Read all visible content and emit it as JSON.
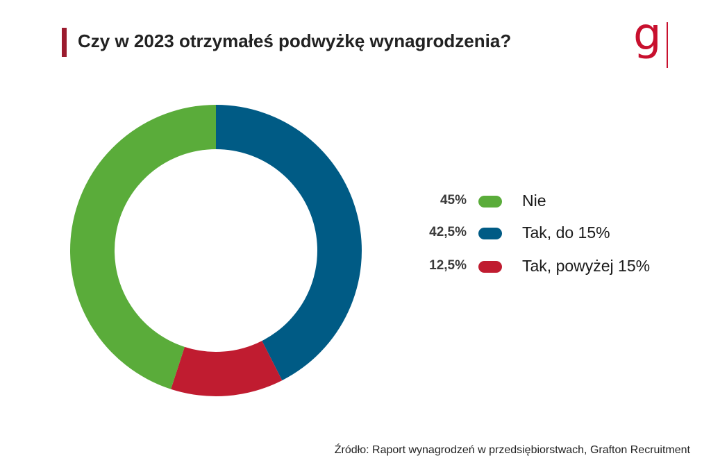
{
  "title": "Czy w 2023 otrzymałeś podwyżkę wynagrodzenia?",
  "logo": {
    "letter": "g",
    "color": "#c8102e"
  },
  "accent_color": "#9b1b2e",
  "chart_data": {
    "type": "pie",
    "subtype": "donut",
    "title": "Czy w 2023 otrzymałeś podwyżkę wynagrodzenia?",
    "slices": [
      {
        "label": "Nie",
        "value": 45,
        "value_label": "45%",
        "color": "#5aac3a"
      },
      {
        "label": "Tak, do 15%",
        "value": 42.5,
        "value_label": "42,5%",
        "color": "#005b85"
      },
      {
        "label": "Tak, powyżej 15%",
        "value": 12.5,
        "value_label": "12,5%",
        "color": "#c01c30"
      }
    ],
    "drawing_order": [
      "Tak, do 15%",
      "Tak, powyżej 15%",
      "Nie"
    ],
    "start_angle": "top, clockwise",
    "legend_placement": "right"
  },
  "source": "Źródło: Raport wynagrodzeń w  przedsiębiorstwach, Grafton Recruitment"
}
